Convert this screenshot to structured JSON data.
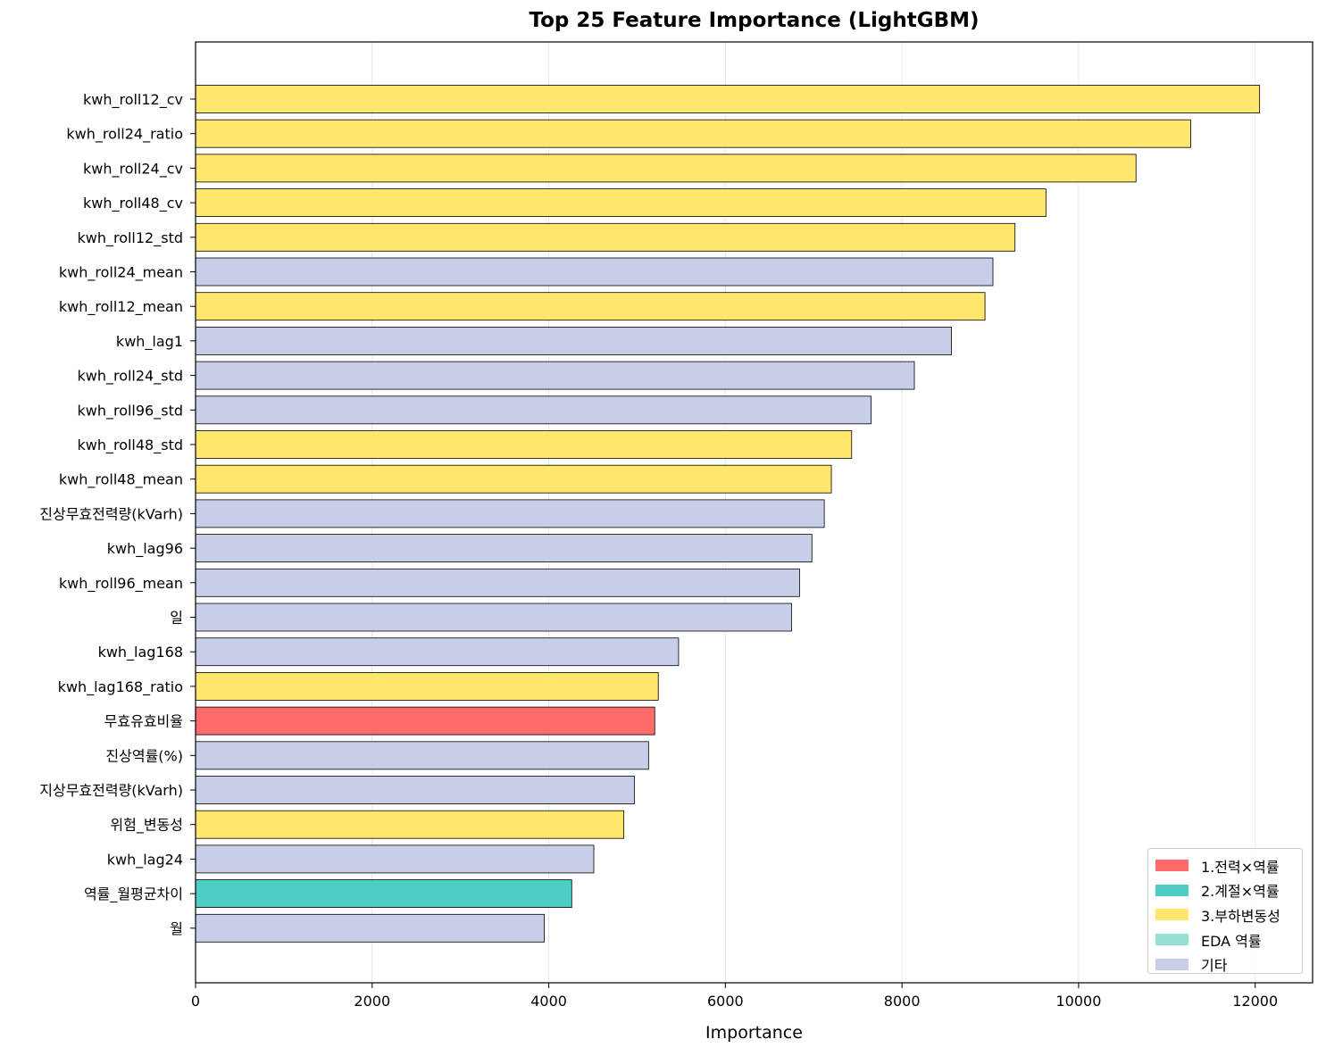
{
  "chart_data": {
    "type": "bar",
    "orientation": "horizontal",
    "title": "Top 25 Feature Importance (LightGBM)",
    "xlabel": "Importance",
    "ylabel": "",
    "xlim": [
      0,
      12650
    ],
    "xticks": [
      0,
      2000,
      4000,
      6000,
      8000,
      10000,
      12000
    ],
    "grid": "x",
    "legend_position": "lower-right",
    "colors": {
      "1.전력×역률": "#ff6b6b",
      "2.계절×역률": "#4ecdc4",
      "3.부하변동성": "#ffe66d",
      "EDA 역률": "#95e1d3",
      "기타": "#c7cee8"
    },
    "legend": [
      "1.전력×역률",
      "2.계절×역률",
      "3.부하변동성",
      "EDA 역률",
      "기타"
    ],
    "bars": [
      {
        "label": "kwh_roll12_cv",
        "value": 12050,
        "group": "3.부하변동성"
      },
      {
        "label": "kwh_roll24_ratio",
        "value": 11270,
        "group": "3.부하변동성"
      },
      {
        "label": "kwh_roll24_cv",
        "value": 10650,
        "group": "3.부하변동성"
      },
      {
        "label": "kwh_roll48_cv",
        "value": 9630,
        "group": "3.부하변동성"
      },
      {
        "label": "kwh_roll12_std",
        "value": 9280,
        "group": "3.부하변동성"
      },
      {
        "label": "kwh_roll24_mean",
        "value": 9030,
        "group": "기타"
      },
      {
        "label": "kwh_roll12_mean",
        "value": 8940,
        "group": "3.부하변동성"
      },
      {
        "label": "kwh_lag1",
        "value": 8560,
        "group": "기타"
      },
      {
        "label": "kwh_roll24_std",
        "value": 8140,
        "group": "기타"
      },
      {
        "label": "kwh_roll96_std",
        "value": 7650,
        "group": "기타"
      },
      {
        "label": "kwh_roll48_std",
        "value": 7430,
        "group": "3.부하변동성"
      },
      {
        "label": "kwh_roll48_mean",
        "value": 7200,
        "group": "3.부하변동성"
      },
      {
        "label": "진상무효전력량(kVarh)",
        "value": 7120,
        "group": "기타"
      },
      {
        "label": "kwh_lag96",
        "value": 6980,
        "group": "기타"
      },
      {
        "label": "kwh_roll96_mean",
        "value": 6840,
        "group": "기타"
      },
      {
        "label": "일",
        "value": 6750,
        "group": "기타"
      },
      {
        "label": "kwh_lag168",
        "value": 5470,
        "group": "기타"
      },
      {
        "label": "kwh_lag168_ratio",
        "value": 5240,
        "group": "3.부하변동성"
      },
      {
        "label": "무효유효비율",
        "value": 5200,
        "group": "1.전력×역률"
      },
      {
        "label": "진상역률(%)",
        "value": 5130,
        "group": "기타"
      },
      {
        "label": "지상무효전력량(kVarh)",
        "value": 4970,
        "group": "기타"
      },
      {
        "label": "위험_변동성",
        "value": 4850,
        "group": "3.부하변동성"
      },
      {
        "label": "kwh_lag24",
        "value": 4510,
        "group": "기타"
      },
      {
        "label": "역률_월평균차이",
        "value": 4260,
        "group": "2.계절×역률"
      },
      {
        "label": "월",
        "value": 3950,
        "group": "기타"
      }
    ]
  }
}
